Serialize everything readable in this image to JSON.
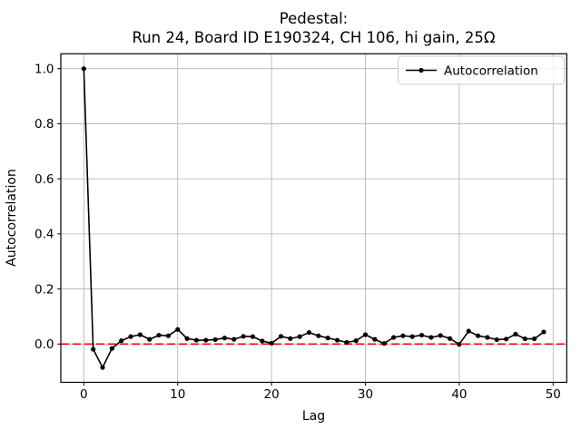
{
  "figure": {
    "background": "#ffffff"
  },
  "chart_data": {
    "type": "line",
    "title": "Pedestal:\nRun 24, Board ID E190324, CH 106, hi gain, 25Ω",
    "title_line1": "Pedestal:",
    "title_line2": "Run 24, Board ID E190324, CH 106, hi gain, 25Ω",
    "xlabel": "Lag",
    "ylabel": "Autocorrelation",
    "legend": [
      "Autocorrelation"
    ],
    "legend_position": "upper right",
    "grid": true,
    "xlim": [
      -2.45,
      51.45
    ],
    "ylim": [
      -0.139,
      1.054
    ],
    "xticks": [
      0,
      10,
      20,
      30,
      40,
      50
    ],
    "xtick_labels": [
      "0",
      "10",
      "20",
      "30",
      "40",
      "50"
    ],
    "yticks": [
      0.0,
      0.2,
      0.4,
      0.6,
      0.8,
      1.0
    ],
    "ytick_labels": [
      "0.0",
      "0.2",
      "0.4",
      "0.6",
      "0.8",
      "1.0"
    ],
    "zero_line": {
      "y": 0.0,
      "color": "#ff0000",
      "style": "dashed"
    },
    "series": [
      {
        "name": "Autocorrelation",
        "color": "#000000",
        "marker": "circle",
        "x": [
          0,
          1,
          2,
          3,
          4,
          5,
          6,
          7,
          8,
          9,
          10,
          11,
          12,
          13,
          14,
          15,
          16,
          17,
          18,
          19,
          20,
          21,
          22,
          23,
          24,
          25,
          26,
          27,
          28,
          29,
          30,
          31,
          32,
          33,
          34,
          35,
          36,
          37,
          38,
          39,
          40,
          41,
          42,
          43,
          44,
          45,
          46,
          47,
          48,
          49
        ],
        "values": [
          1.0,
          -0.019,
          -0.085,
          -0.016,
          0.012,
          0.027,
          0.034,
          0.017,
          0.032,
          0.03,
          0.053,
          0.02,
          0.014,
          0.014,
          0.016,
          0.022,
          0.017,
          0.028,
          0.027,
          0.011,
          0.003,
          0.028,
          0.02,
          0.027,
          0.042,
          0.03,
          0.022,
          0.014,
          0.006,
          0.012,
          0.034,
          0.017,
          0.002,
          0.024,
          0.03,
          0.027,
          0.032,
          0.024,
          0.031,
          0.02,
          -0.001,
          0.047,
          0.03,
          0.024,
          0.016,
          0.018,
          0.036,
          0.019,
          0.019,
          0.044
        ]
      }
    ],
    "colors": {
      "grid": "#b0b0b0",
      "spine": "#000000",
      "line": "#000000",
      "zero_line": "#ff0000",
      "legend_edge": "#cccccc",
      "background": "#ffffff"
    }
  }
}
